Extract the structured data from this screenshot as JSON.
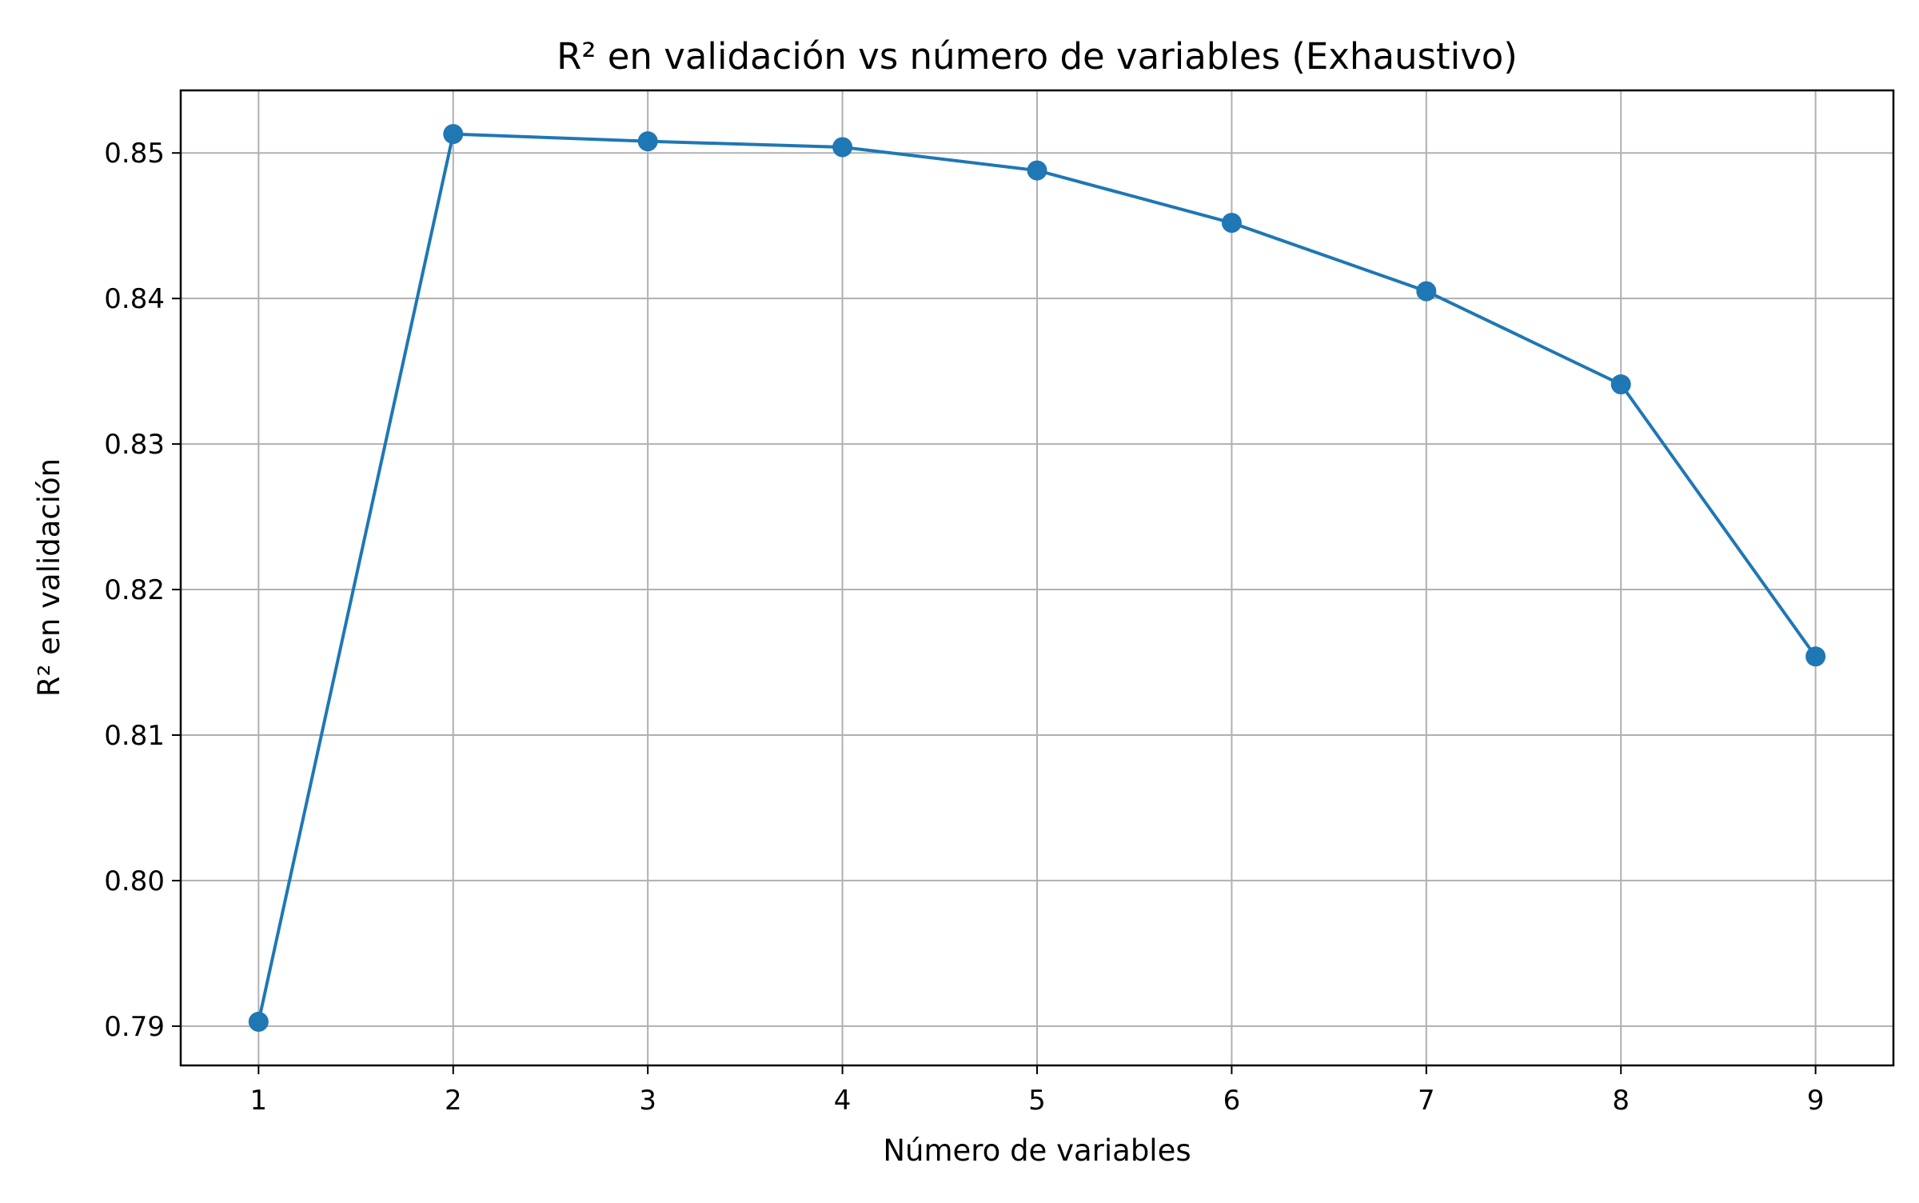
{
  "chart_data": {
    "type": "line",
    "title": "R² en validación vs número de variables (Exhaustivo)",
    "xlabel": "Número de variables",
    "ylabel": "R² en validación",
    "x": [
      1,
      2,
      3,
      4,
      5,
      6,
      7,
      8,
      9
    ],
    "series": [
      {
        "values": [
          0.7903,
          0.8513,
          0.8508,
          0.8504,
          0.8488,
          0.8452,
          0.8405,
          0.8341,
          0.8154
        ],
        "color": "#1f77b4",
        "marker": "circle"
      }
    ],
    "xticks": [
      "1",
      "2",
      "3",
      "4",
      "5",
      "6",
      "7",
      "8",
      "9"
    ],
    "yticks": [
      0.79,
      0.8,
      0.81,
      0.82,
      0.83,
      0.84,
      0.85
    ],
    "ytick_labels": [
      "0.79",
      "0.80",
      "0.81",
      "0.82",
      "0.83",
      "0.84",
      "0.85"
    ],
    "xlim": [
      0.6,
      9.4
    ],
    "ylim": [
      0.7873,
      0.8543
    ],
    "grid": true,
    "legend": false,
    "colors": {
      "grid": "#b0b0b0",
      "axes": "#000000"
    }
  }
}
